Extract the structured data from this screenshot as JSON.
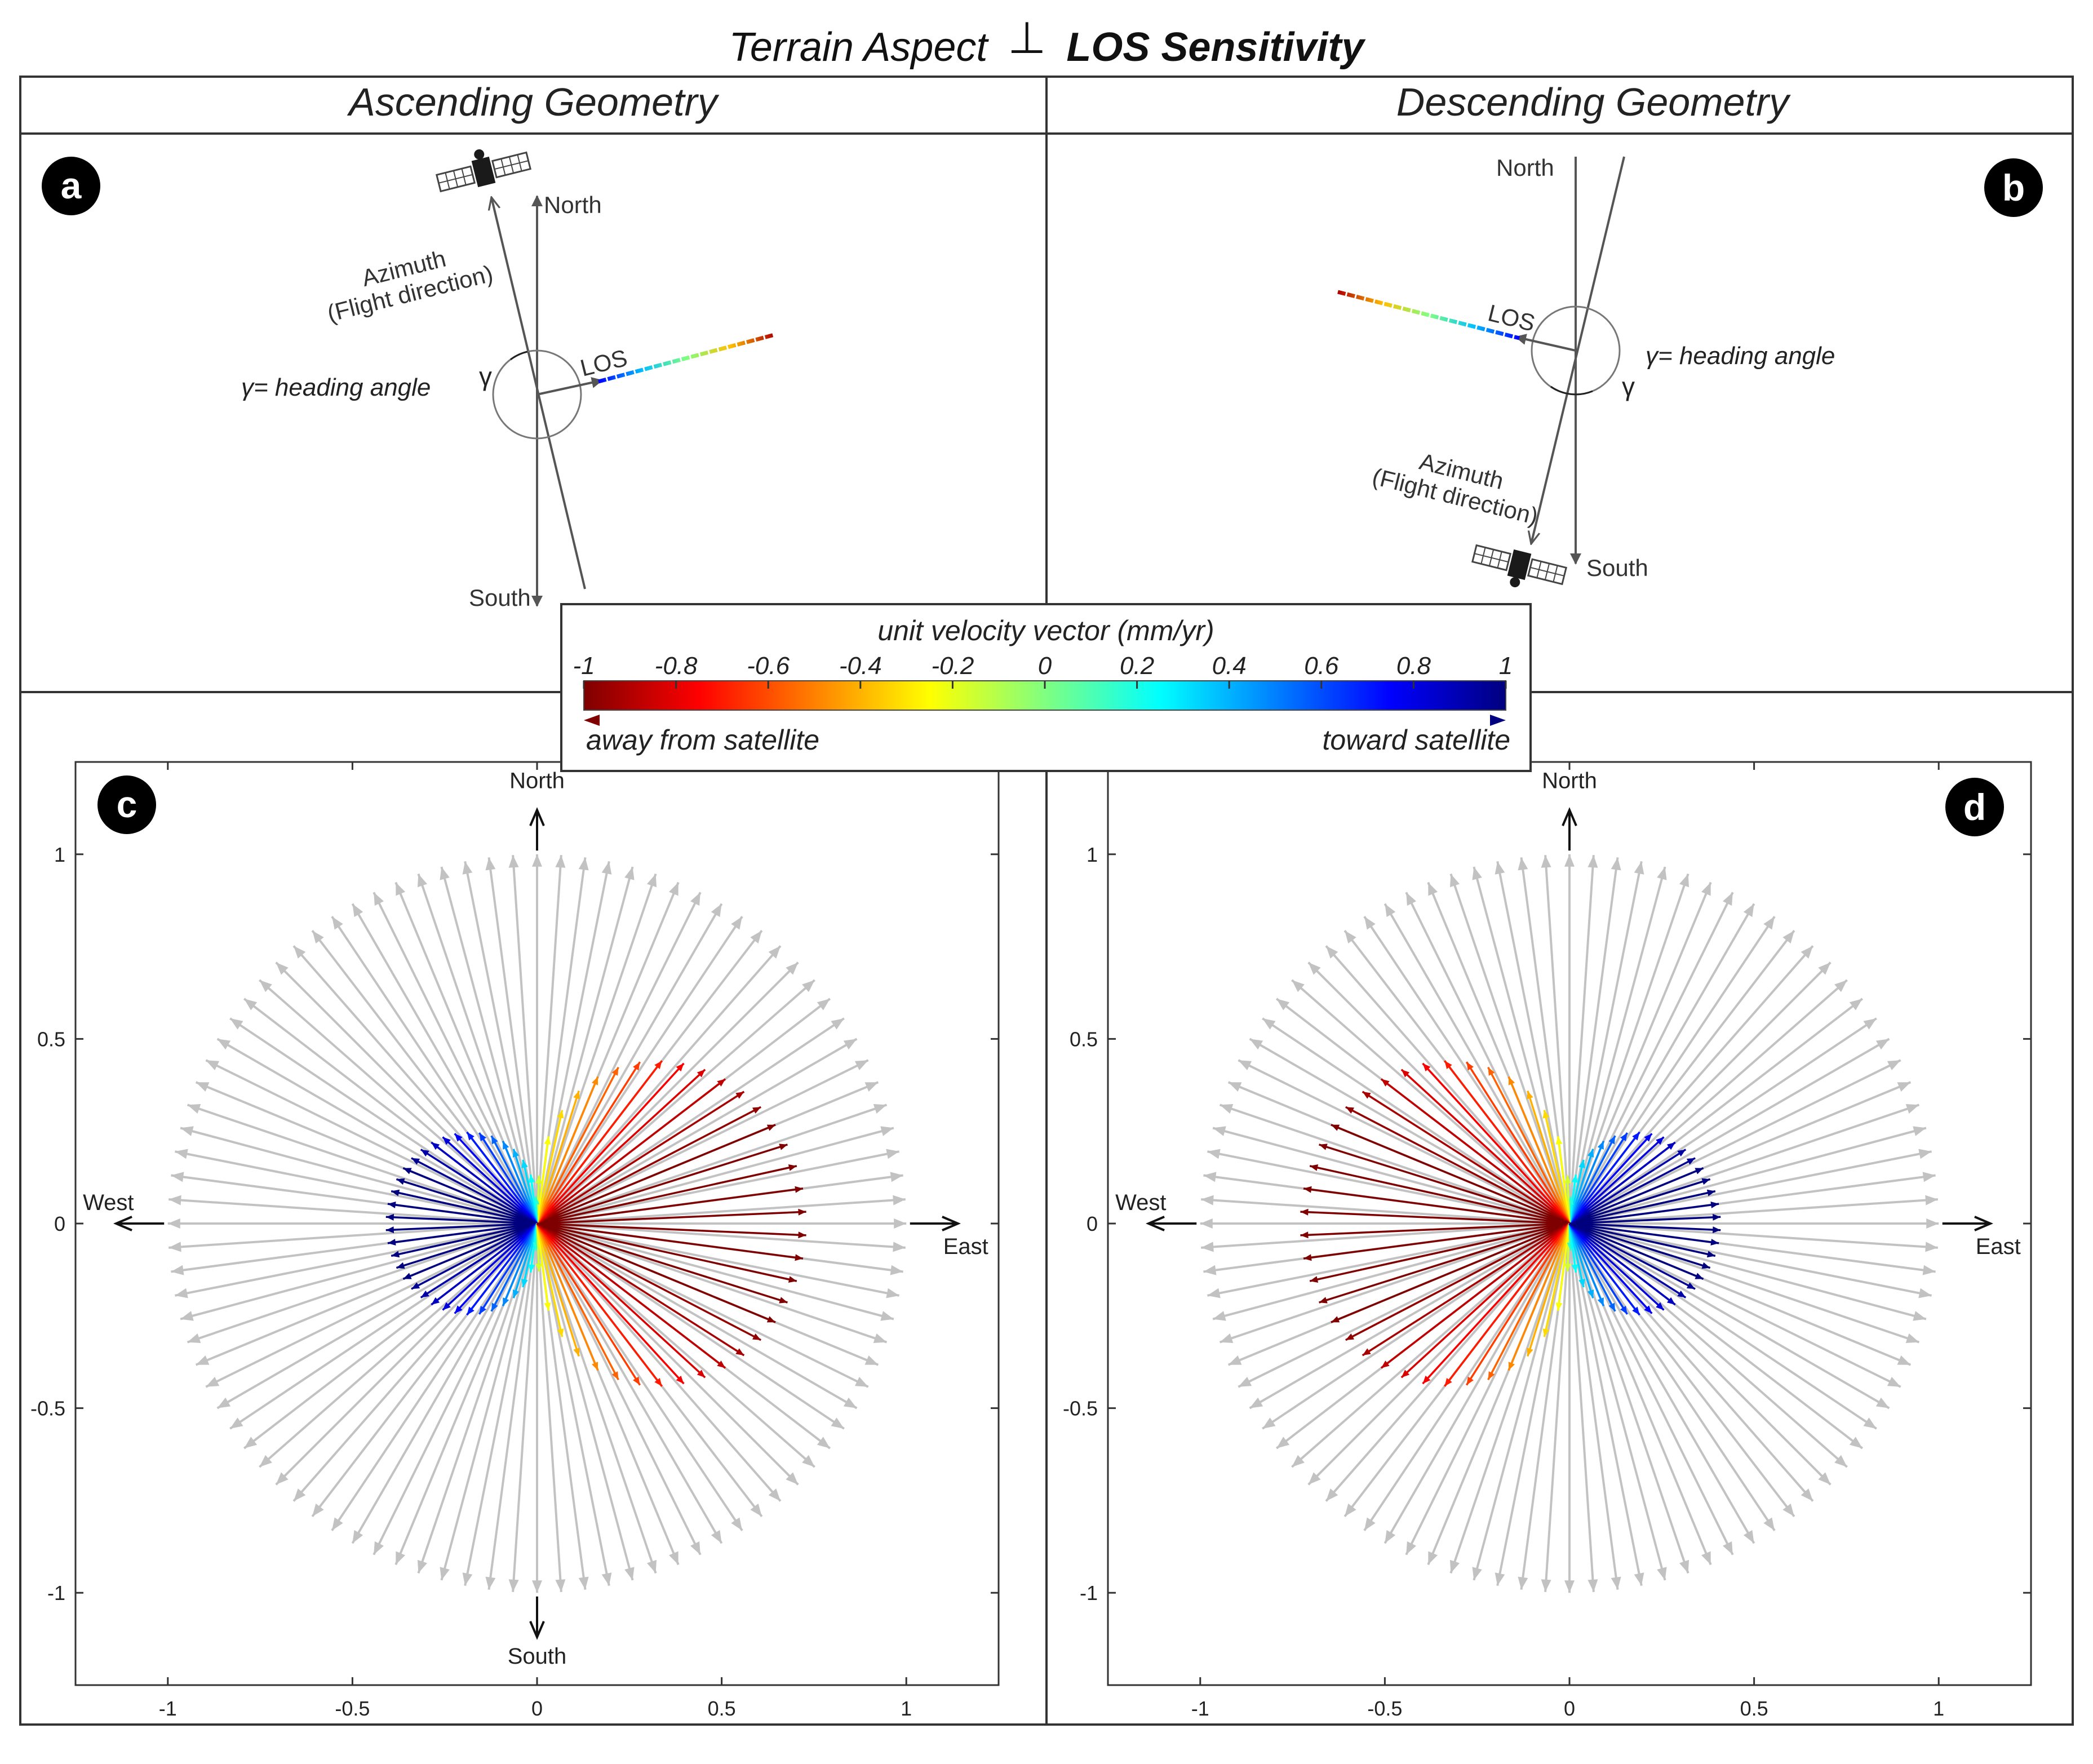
{
  "title": {
    "left": "Terrain Aspect",
    "symbol": "⊥",
    "right": "LOS Sensitivity"
  },
  "headers": {
    "ascending": "Ascending Geometry",
    "descending": "Descending Geometry"
  },
  "panel_labels": [
    "a",
    "b",
    "c",
    "d"
  ],
  "diagram": {
    "north": "North",
    "south": "South",
    "azimuth": "Azimuth",
    "flight_direction": "(Flight direction)",
    "los": "LOS",
    "gamma": "γ",
    "heading_label": "γ= heading angle"
  },
  "colorbar": {
    "title": "unit velocity vector (mm/yr)",
    "ticks": [
      "-1",
      "-0.8",
      "-0.6",
      "-0.4",
      "-0.2",
      "0",
      "0.2",
      "0.4",
      "0.6",
      "0.8",
      "1"
    ],
    "left_label": "away from satellite",
    "right_label": "toward satellite",
    "colormap": [
      "#7f0000",
      "#ff0000",
      "#ff8000",
      "#ffff00",
      "#80ff80",
      "#00ffff",
      "#0080ff",
      "#0000ff",
      "#00007f"
    ]
  },
  "plot_labels": {
    "north": "North",
    "south": "South",
    "east": "East",
    "west": "West"
  },
  "colors": {
    "grey_arrow": "#c2c2c2",
    "frame": "#333333"
  },
  "chart_data": [
    {
      "type": "quiver",
      "panel": "c",
      "geometry": "ascending",
      "xlim": [
        -1.25,
        1.25
      ],
      "ylim": [
        -1.25,
        1.25
      ],
      "xticks": [
        -1,
        -0.5,
        0,
        0.5,
        1
      ],
      "yticks": [
        -1,
        -0.5,
        0,
        0.5,
        1
      ],
      "xtick_labels": [
        "-1",
        "-0.5",
        "0",
        "0.5",
        "1"
      ],
      "ytick_labels": [
        "1",
        "0.5",
        "0",
        "-0.5",
        "-1"
      ],
      "unit_vectors_count": 96,
      "grey_arrow_length": 1,
      "sensitivity_lobes": {
        "away_from_satellite": {
          "direction": "east",
          "peak_length": 0.73,
          "color_range": [
            -1,
            -0.1
          ]
        },
        "toward_satellite": {
          "direction": "west",
          "peak_length": 0.41,
          "color_range": [
            0.1,
            1
          ]
        }
      },
      "show_south_label": true
    },
    {
      "type": "quiver",
      "panel": "d",
      "geometry": "descending",
      "xlim": [
        -1.25,
        1.25
      ],
      "ylim": [
        -1.25,
        1.25
      ],
      "xticks": [
        -1,
        -0.5,
        0,
        0.5,
        1
      ],
      "yticks": [
        -1,
        -0.5,
        0,
        0.5,
        1
      ],
      "xtick_labels": [
        "-1",
        "-0.5",
        "0",
        "0.5",
        "1"
      ],
      "ytick_labels": [
        "1",
        "0.5",
        "0",
        "-0.5",
        "-1"
      ],
      "unit_vectors_count": 96,
      "grey_arrow_length": 1,
      "sensitivity_lobes": {
        "away_from_satellite": {
          "direction": "west",
          "peak_length": 0.73,
          "color_range": [
            -1,
            -0.1
          ]
        },
        "toward_satellite": {
          "direction": "east",
          "peak_length": 0.41,
          "color_range": [
            0.1,
            1
          ]
        }
      },
      "show_south_label": false
    }
  ]
}
